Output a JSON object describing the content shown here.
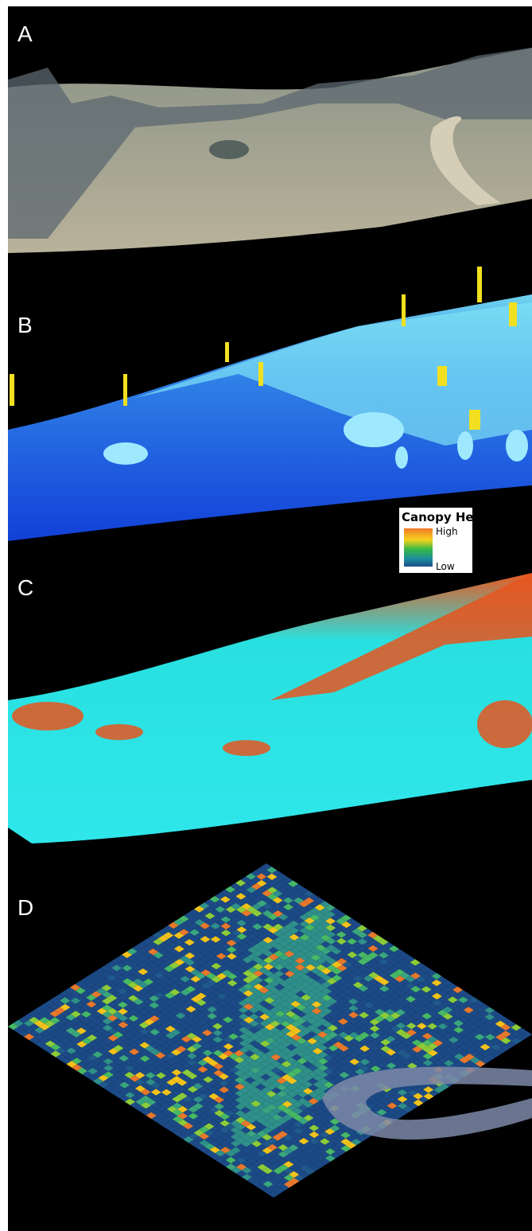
{
  "panels": [
    {
      "label": "A"
    },
    {
      "label": "B"
    },
    {
      "label": "C"
    },
    {
      "label": "D"
    }
  ],
  "legend": {
    "title": "Canopy Height",
    "high": "High",
    "low": "Low"
  }
}
